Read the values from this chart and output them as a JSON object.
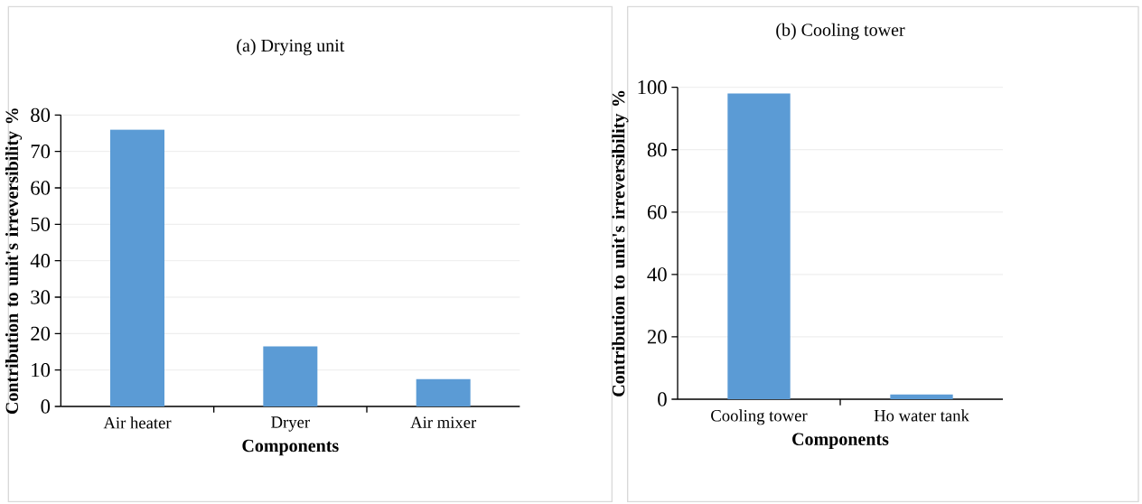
{
  "chart_data": [
    {
      "type": "bar",
      "title": "(a) Drying unit",
      "xlabel": "Components",
      "ylabel": "Contribution to unit's irreversibility %",
      "categories": [
        "Air heater",
        "Dryer",
        "Air mixer"
      ],
      "values": [
        76,
        16.5,
        7.5
      ],
      "color": "#5b9bd5",
      "ylim": [
        0,
        80
      ],
      "yticks": [
        0,
        10,
        20,
        30,
        40,
        50,
        60,
        70,
        80
      ],
      "grid": "y"
    },
    {
      "type": "bar",
      "title": "(b) Cooling tower",
      "xlabel": "Components",
      "ylabel": "Contribution to unit's irreversibility %",
      "categories": [
        "Cooling tower",
        "Ho water tank"
      ],
      "values": [
        98,
        1.5
      ],
      "color": "#5b9bd5",
      "ylim": [
        0,
        100
      ],
      "yticks": [
        0,
        20,
        40,
        60,
        80,
        100
      ],
      "grid": "y"
    }
  ]
}
